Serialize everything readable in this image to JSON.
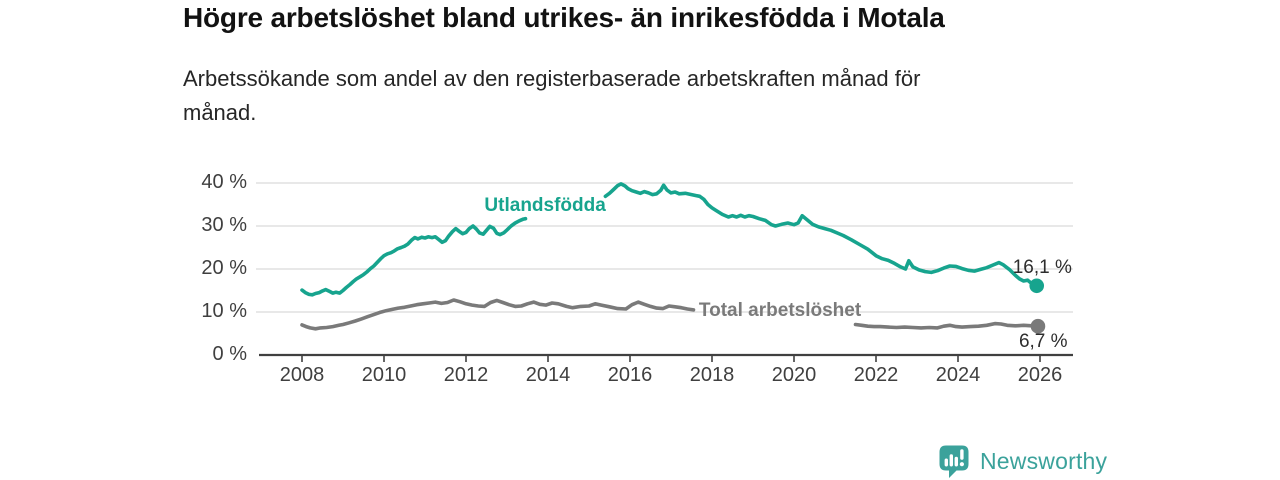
{
  "header": {
    "title": "Högre arbetslöshet bland utrikes- än inrikesfödda i Motala",
    "subtitle": "Arbetssökande som andel av den registerbaserade arbetskraften månad för månad."
  },
  "chart_data": {
    "type": "line",
    "title": "Högre arbetslöshet bland utrikes- än inrikesfödda i Motala",
    "subtitle": "Arbetssökande som andel av den registerbaserade arbetskraften månad för månad.",
    "unit": "%",
    "grid": true,
    "legend_position": "inline-line-labels",
    "x_axis": {
      "tick_values": [
        2008,
        2010,
        2012,
        2014,
        2016,
        2018,
        2020,
        2022,
        2024,
        2026
      ],
      "tick_labels": [
        "2008",
        "2010",
        "2012",
        "2014",
        "2016",
        "2018",
        "2020",
        "2022",
        "2024",
        "2026"
      ],
      "range": [
        2006.9,
        2026.8
      ]
    },
    "y_axis": {
      "tick_values": [
        0,
        10,
        20,
        30,
        40
      ],
      "tick_labels": [
        "0 %",
        "10 %",
        "20 %",
        "30 %",
        "40 %"
      ],
      "range": [
        0,
        43
      ]
    },
    "colors": {
      "axis": "#404040",
      "grid": "#d9d9d9",
      "end_label_text": "#2d2d2d"
    },
    "series": [
      {
        "name": "Utlandsfödda",
        "color": "#17a48e",
        "line_label": {
          "text": "Utlandsfödda",
          "x": 2013.93,
          "y": 34.7
        },
        "end_label": "16,1 %",
        "end_value": 16.1,
        "segments": [
          [
            [
              2008.0,
              15.1
            ],
            [
              2008.08,
              14.5
            ],
            [
              2008.17,
              14.1
            ],
            [
              2008.25,
              14.0
            ],
            [
              2008.33,
              14.3
            ],
            [
              2008.42,
              14.5
            ],
            [
              2008.5,
              14.9
            ],
            [
              2008.58,
              15.2
            ],
            [
              2008.67,
              14.8
            ],
            [
              2008.75,
              14.4
            ],
            [
              2008.83,
              14.6
            ],
            [
              2008.92,
              14.4
            ],
            [
              2009.0,
              15.0
            ],
            [
              2009.08,
              15.7
            ],
            [
              2009.17,
              16.4
            ],
            [
              2009.25,
              17.1
            ],
            [
              2009.33,
              17.7
            ],
            [
              2009.42,
              18.2
            ],
            [
              2009.5,
              18.7
            ],
            [
              2009.58,
              19.3
            ],
            [
              2009.67,
              20.1
            ],
            [
              2009.75,
              20.7
            ],
            [
              2009.83,
              21.5
            ],
            [
              2009.92,
              22.4
            ],
            [
              2010.0,
              23.1
            ],
            [
              2010.08,
              23.5
            ],
            [
              2010.17,
              23.8
            ],
            [
              2010.25,
              24.2
            ],
            [
              2010.33,
              24.7
            ],
            [
              2010.42,
              25.0
            ],
            [
              2010.5,
              25.3
            ],
            [
              2010.58,
              25.8
            ],
            [
              2010.67,
              26.7
            ],
            [
              2010.75,
              27.3
            ],
            [
              2010.83,
              27.0
            ],
            [
              2010.92,
              27.4
            ],
            [
              2011.0,
              27.2
            ],
            [
              2011.08,
              27.5
            ],
            [
              2011.17,
              27.3
            ],
            [
              2011.25,
              27.5
            ],
            [
              2011.33,
              26.9
            ],
            [
              2011.42,
              26.2
            ],
            [
              2011.5,
              26.6
            ],
            [
              2011.58,
              27.7
            ],
            [
              2011.67,
              28.7
            ],
            [
              2011.75,
              29.4
            ],
            [
              2011.83,
              28.8
            ],
            [
              2011.92,
              28.2
            ],
            [
              2012.0,
              28.5
            ],
            [
              2012.08,
              29.4
            ],
            [
              2012.17,
              30.0
            ],
            [
              2012.25,
              29.3
            ],
            [
              2012.33,
              28.4
            ],
            [
              2012.42,
              28.1
            ],
            [
              2012.5,
              29.0
            ],
            [
              2012.58,
              29.9
            ],
            [
              2012.67,
              29.5
            ],
            [
              2012.75,
              28.3
            ],
            [
              2012.83,
              28.0
            ],
            [
              2012.92,
              28.4
            ],
            [
              2013.0,
              29.1
            ],
            [
              2013.1,
              30.0
            ],
            [
              2013.2,
              30.7
            ],
            [
              2013.3,
              31.2
            ],
            [
              2013.4,
              31.6
            ],
            [
              2013.45,
              31.7
            ]
          ],
          [
            [
              2015.4,
              36.9
            ],
            [
              2015.5,
              37.6
            ],
            [
              2015.6,
              38.5
            ],
            [
              2015.7,
              39.4
            ],
            [
              2015.78,
              39.8
            ],
            [
              2015.88,
              39.3
            ],
            [
              2015.95,
              38.7
            ],
            [
              2016.05,
              38.2
            ],
            [
              2016.15,
              37.9
            ],
            [
              2016.25,
              37.6
            ],
            [
              2016.35,
              38.0
            ],
            [
              2016.45,
              37.7
            ],
            [
              2016.55,
              37.3
            ],
            [
              2016.65,
              37.5
            ],
            [
              2016.75,
              38.3
            ],
            [
              2016.82,
              39.5
            ],
            [
              2016.9,
              38.4
            ],
            [
              2017.0,
              37.7
            ],
            [
              2017.1,
              37.9
            ],
            [
              2017.2,
              37.5
            ],
            [
              2017.35,
              37.6
            ],
            [
              2017.5,
              37.3
            ],
            [
              2017.6,
              37.1
            ],
            [
              2017.7,
              36.9
            ],
            [
              2017.8,
              36.2
            ],
            [
              2017.9,
              35.0
            ],
            [
              2018.0,
              34.2
            ],
            [
              2018.1,
              33.6
            ],
            [
              2018.25,
              32.7
            ],
            [
              2018.4,
              32.1
            ],
            [
              2018.5,
              32.4
            ],
            [
              2018.6,
              32.1
            ],
            [
              2018.7,
              32.5
            ],
            [
              2018.8,
              32.1
            ],
            [
              2018.9,
              32.4
            ],
            [
              2019.0,
              32.2
            ],
            [
              2019.15,
              31.7
            ],
            [
              2019.3,
              31.3
            ],
            [
              2019.45,
              30.3
            ],
            [
              2019.55,
              30.0
            ],
            [
              2019.7,
              30.4
            ],
            [
              2019.85,
              30.7
            ],
            [
              2020.0,
              30.3
            ],
            [
              2020.1,
              30.7
            ],
            [
              2020.2,
              32.4
            ],
            [
              2020.3,
              31.6
            ],
            [
              2020.45,
              30.4
            ],
            [
              2020.6,
              29.8
            ],
            [
              2020.75,
              29.4
            ],
            [
              2020.9,
              29.0
            ],
            [
              2021.05,
              28.4
            ],
            [
              2021.2,
              27.8
            ],
            [
              2021.4,
              26.8
            ],
            [
              2021.6,
              25.7
            ],
            [
              2021.8,
              24.6
            ],
            [
              2022.0,
              23.1
            ],
            [
              2022.15,
              22.4
            ],
            [
              2022.3,
              22.0
            ],
            [
              2022.45,
              21.3
            ],
            [
              2022.6,
              20.5
            ],
            [
              2022.72,
              20.0
            ],
            [
              2022.8,
              21.9
            ],
            [
              2022.9,
              20.5
            ],
            [
              2023.05,
              19.8
            ],
            [
              2023.2,
              19.4
            ],
            [
              2023.35,
              19.2
            ],
            [
              2023.5,
              19.6
            ],
            [
              2023.65,
              20.2
            ],
            [
              2023.8,
              20.7
            ],
            [
              2023.95,
              20.6
            ],
            [
              2024.1,
              20.1
            ],
            [
              2024.25,
              19.7
            ],
            [
              2024.4,
              19.5
            ],
            [
              2024.55,
              19.9
            ],
            [
              2024.7,
              20.3
            ],
            [
              2024.85,
              20.9
            ],
            [
              2025.0,
              21.5
            ],
            [
              2025.1,
              21.0
            ],
            [
              2025.25,
              19.9
            ],
            [
              2025.4,
              18.5
            ],
            [
              2025.5,
              17.7
            ],
            [
              2025.6,
              17.2
            ],
            [
              2025.7,
              17.4
            ],
            [
              2025.8,
              16.6
            ],
            [
              2025.92,
              16.1
            ]
          ]
        ]
      },
      {
        "name": "Total arbetslöshet",
        "color": "#7a7a7a",
        "line_label": {
          "text": "Total arbetslöshet",
          "x": 2019.66,
          "y": 10.2
        },
        "end_label": "6,7 %",
        "end_value": 6.7,
        "segments": [
          [
            [
              2008.0,
              7.0
            ],
            [
              2008.1,
              6.6
            ],
            [
              2008.2,
              6.3
            ],
            [
              2008.33,
              6.1
            ],
            [
              2008.45,
              6.3
            ],
            [
              2008.6,
              6.4
            ],
            [
              2008.75,
              6.6
            ],
            [
              2008.9,
              6.9
            ],
            [
              2009.0,
              7.1
            ],
            [
              2009.15,
              7.5
            ],
            [
              2009.3,
              7.9
            ],
            [
              2009.45,
              8.4
            ],
            [
              2009.6,
              8.9
            ],
            [
              2009.75,
              9.4
            ],
            [
              2009.9,
              9.9
            ],
            [
              2010.05,
              10.3
            ],
            [
              2010.2,
              10.6
            ],
            [
              2010.35,
              10.9
            ],
            [
              2010.5,
              11.1
            ],
            [
              2010.65,
              11.4
            ],
            [
              2010.8,
              11.7
            ],
            [
              2010.95,
              11.9
            ],
            [
              2011.1,
              12.1
            ],
            [
              2011.25,
              12.3
            ],
            [
              2011.4,
              12.0
            ],
            [
              2011.55,
              12.2
            ],
            [
              2011.7,
              12.8
            ],
            [
              2011.85,
              12.4
            ],
            [
              2012.0,
              11.9
            ],
            [
              2012.15,
              11.6
            ],
            [
              2012.3,
              11.4
            ],
            [
              2012.45,
              11.3
            ],
            [
              2012.6,
              12.2
            ],
            [
              2012.75,
              12.7
            ],
            [
              2012.9,
              12.2
            ],
            [
              2013.05,
              11.7
            ],
            [
              2013.2,
              11.3
            ],
            [
              2013.35,
              11.4
            ],
            [
              2013.5,
              11.9
            ],
            [
              2013.65,
              12.3
            ],
            [
              2013.8,
              11.8
            ],
            [
              2013.95,
              11.6
            ],
            [
              2014.1,
              12.1
            ],
            [
              2014.25,
              11.9
            ],
            [
              2014.45,
              11.3
            ],
            [
              2014.6,
              11.0
            ],
            [
              2014.8,
              11.3
            ],
            [
              2015.0,
              11.4
            ],
            [
              2015.15,
              11.9
            ],
            [
              2015.3,
              11.6
            ],
            [
              2015.5,
              11.2
            ],
            [
              2015.7,
              10.8
            ],
            [
              2015.9,
              10.7
            ],
            [
              2016.05,
              11.7
            ],
            [
              2016.2,
              12.3
            ],
            [
              2016.35,
              11.8
            ],
            [
              2016.5,
              11.3
            ],
            [
              2016.65,
              10.9
            ],
            [
              2016.8,
              10.8
            ],
            [
              2016.95,
              11.4
            ],
            [
              2017.1,
              11.2
            ],
            [
              2017.25,
              11.0
            ],
            [
              2017.4,
              10.7
            ],
            [
              2017.55,
              10.5
            ]
          ],
          [
            [
              2021.5,
              7.1
            ],
            [
              2021.65,
              6.9
            ],
            [
              2021.8,
              6.7
            ],
            [
              2021.95,
              6.6
            ],
            [
              2022.1,
              6.6
            ],
            [
              2022.3,
              6.5
            ],
            [
              2022.5,
              6.4
            ],
            [
              2022.7,
              6.5
            ],
            [
              2022.9,
              6.4
            ],
            [
              2023.1,
              6.3
            ],
            [
              2023.3,
              6.4
            ],
            [
              2023.5,
              6.3
            ],
            [
              2023.65,
              6.7
            ],
            [
              2023.8,
              6.9
            ],
            [
              2023.95,
              6.6
            ],
            [
              2024.1,
              6.5
            ],
            [
              2024.3,
              6.6
            ],
            [
              2024.5,
              6.7
            ],
            [
              2024.7,
              6.9
            ],
            [
              2024.9,
              7.3
            ],
            [
              2025.05,
              7.2
            ],
            [
              2025.2,
              6.9
            ],
            [
              2025.4,
              6.8
            ],
            [
              2025.6,
              6.9
            ],
            [
              2025.8,
              6.8
            ],
            [
              2025.95,
              6.7
            ]
          ]
        ]
      }
    ]
  },
  "footer": {
    "brand": "Newsworthy",
    "brand_color": "#3ba29b",
    "logo_icon": "newsworthy-speech-bubble-bar-chart-icon"
  }
}
